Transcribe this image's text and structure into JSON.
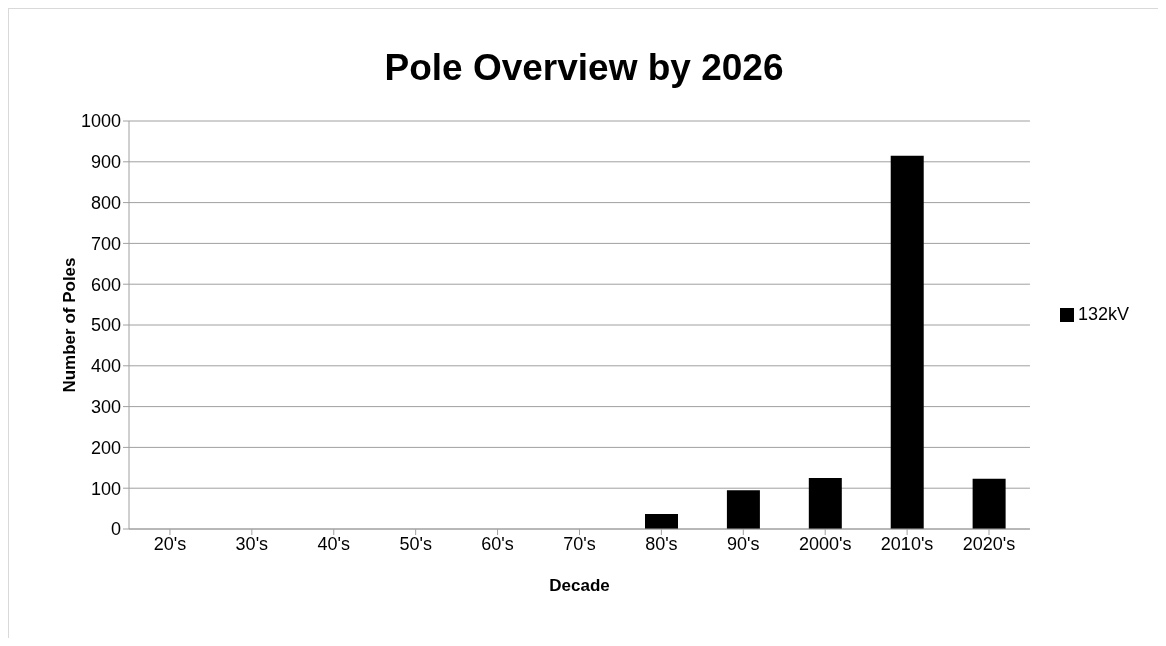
{
  "chart_data": {
    "type": "bar",
    "title": "Pole Overview by 2026",
    "xlabel": "Decade",
    "ylabel": "Number of Poles",
    "categories": [
      "20's",
      "30's",
      "40's",
      "50's",
      "60's",
      "70's",
      "80's",
      "90's",
      "2000's",
      "2010's",
      "2020's"
    ],
    "series": [
      {
        "name": "132kV",
        "color": "#000000",
        "values": [
          0,
          0,
          0,
          0,
          0,
          0,
          37,
          95,
          125,
          915,
          123
        ]
      }
    ],
    "ylim": [
      0,
      1000
    ],
    "yticks": [
      0,
      100,
      200,
      300,
      400,
      500,
      600,
      700,
      800,
      900,
      1000
    ],
    "grid": "y",
    "legend": "right"
  }
}
